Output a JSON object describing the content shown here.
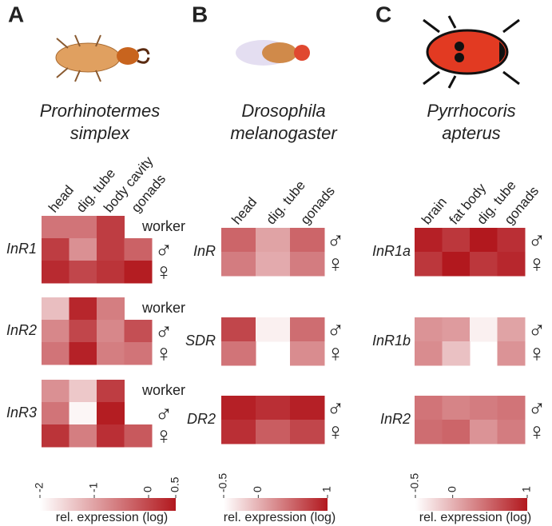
{
  "chart_data": [
    {
      "type": "heatmap",
      "panel": "A",
      "title_lines": [
        "Prorhinotermes",
        "simplex"
      ],
      "columns": [
        "head",
        "dig. tube",
        "body cavity",
        "gonads"
      ],
      "colormap": [
        "#ffffff",
        "#b2181e"
      ],
      "genes": [
        {
          "name": "InR1",
          "series": [
            {
              "name": "worker",
              "values": [
                -0.5,
                -0.5,
                0.1,
                null
              ]
            },
            {
              "name": "♂",
              "values": [
                0.1,
                -0.8,
                0.1,
                -0.3
              ]
            },
            {
              "name": "♀",
              "values": [
                0.3,
                0.0,
                0.2,
                0.45
              ]
            }
          ]
        },
        {
          "name": "InR2",
          "series": [
            {
              "name": "worker",
              "values": [
                -1.3,
                0.35,
                -0.6,
                null
              ]
            },
            {
              "name": "♂",
              "values": [
                -0.7,
                0.0,
                -0.7,
                -0.1
              ]
            },
            {
              "name": "♀",
              "values": [
                -0.5,
                0.4,
                -0.6,
                -0.5
              ]
            }
          ]
        },
        {
          "name": "InR3",
          "series": [
            {
              "name": "worker",
              "values": [
                -0.8,
                -1.4,
                0.1,
                null
              ]
            },
            {
              "name": "♂",
              "values": [
                -0.5,
                -1.9,
                0.45,
                null
              ]
            },
            {
              "name": "♀",
              "values": [
                0.2,
                -0.6,
                0.25,
                -0.2
              ]
            }
          ]
        }
      ],
      "clim": [
        -2,
        0.5
      ],
      "cticks": [
        -2,
        -1,
        0,
        0.5
      ],
      "clabel": "rel. expression (log)"
    },
    {
      "type": "heatmap",
      "panel": "B",
      "title_lines": [
        "Drosophila",
        "melanogaster"
      ],
      "columns": [
        "head",
        "dig. tube",
        "gonads"
      ],
      "colormap": [
        "#ffffff",
        "#b2181e"
      ],
      "genes": [
        {
          "name": "InR",
          "series": [
            {
              "name": "♂",
              "values": [
                0.5,
                0.1,
                0.5
              ]
            },
            {
              "name": "♀",
              "values": [
                0.35,
                0.05,
                0.35
              ]
            }
          ]
        },
        {
          "name": "SDR",
          "series": [
            {
              "name": "♂",
              "values": [
                0.7,
                -0.4,
                0.45
              ]
            },
            {
              "name": "♀",
              "values": [
                0.4,
                null,
                0.25
              ]
            }
          ]
        },
        {
          "name": "DR2",
          "series": [
            {
              "name": "♂",
              "values": [
                0.95,
                0.85,
                0.95
              ]
            },
            {
              "name": "♀",
              "values": [
                0.85,
                0.55,
                0.7
              ]
            }
          ]
        }
      ],
      "clim": [
        -0.5,
        1
      ],
      "cticks": [
        -0.5,
        0,
        1
      ],
      "clabel": "rel. expression (log)"
    },
    {
      "type": "heatmap",
      "panel": "C",
      "title_lines": [
        "Pyrrhocoris",
        "apterus"
      ],
      "columns": [
        "brain",
        "fat body",
        "dig. tube",
        "gonads"
      ],
      "colormap": [
        "#ffffff",
        "#b2181e"
      ],
      "genes": [
        {
          "name": "InR1a",
          "series": [
            {
              "name": "♂",
              "values": [
                0.95,
                0.8,
                1,
                0.85
              ]
            },
            {
              "name": "♀",
              "values": [
                0.8,
                1,
                0.8,
                0.9
              ]
            }
          ]
        },
        {
          "name": "InR1b",
          "series": [
            {
              "name": "♂",
              "values": [
                0.2,
                0.15,
                -0.4,
                0.1
              ]
            },
            {
              "name": "♀",
              "values": [
                0.25,
                -0.1,
                null,
                0.2
              ]
            }
          ]
        },
        {
          "name": "InR2",
          "series": [
            {
              "name": "♂",
              "values": [
                0.4,
                0.3,
                0.35,
                0.4
              ]
            },
            {
              "name": "♀",
              "values": [
                0.45,
                0.5,
                0.2,
                0.35
              ]
            }
          ]
        }
      ],
      "clim": [
        -0.5,
        1
      ],
      "cticks": [
        -0.5,
        0,
        1
      ],
      "clabel": "rel. expression (log)"
    }
  ]
}
